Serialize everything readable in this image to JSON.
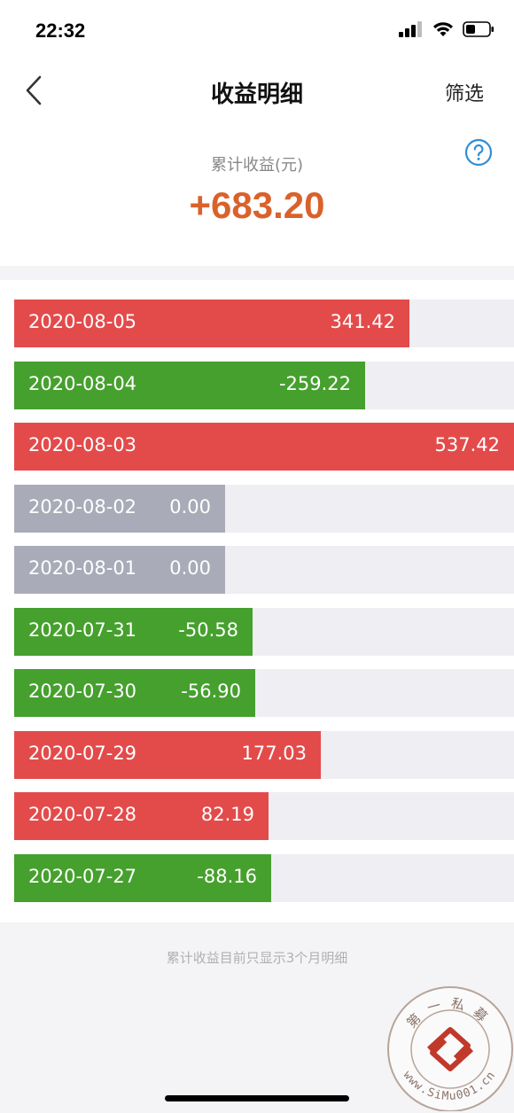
{
  "status_bar": {
    "time": "22:32"
  },
  "nav": {
    "title": "收益明细",
    "filter_label": "筛选"
  },
  "summary": {
    "label": "累计收益(元)",
    "value": "+683.20"
  },
  "colors": {
    "positive": "#e34b4b",
    "negative": "#46a02e",
    "zero": "#a9abb8",
    "accent": "#d9622b",
    "help": "#2e8fd6"
  },
  "records": [
    {
      "date": "2020-08-05",
      "value": "341.42",
      "kind": "positive",
      "bar_fraction": 0.79
    },
    {
      "date": "2020-08-04",
      "value": "-259.22",
      "kind": "negative",
      "bar_fraction": 0.702
    },
    {
      "date": "2020-08-03",
      "value": "537.42",
      "kind": "positive",
      "bar_fraction": 1.0
    },
    {
      "date": "2020-08-02",
      "value": "0.00",
      "kind": "zero",
      "bar_fraction": 0.422
    },
    {
      "date": "2020-08-01",
      "value": "0.00",
      "kind": "zero",
      "bar_fraction": 0.422
    },
    {
      "date": "2020-07-31",
      "value": "-50.58",
      "kind": "negative",
      "bar_fraction": 0.477
    },
    {
      "date": "2020-07-30",
      "value": "-56.90",
      "kind": "negative",
      "bar_fraction": 0.482
    },
    {
      "date": "2020-07-29",
      "value": "177.03",
      "kind": "positive",
      "bar_fraction": 0.613
    },
    {
      "date": "2020-07-28",
      "value": "82.19",
      "kind": "positive",
      "bar_fraction": 0.509
    },
    {
      "date": "2020-07-27",
      "value": "-88.16",
      "kind": "negative",
      "bar_fraction": 0.515
    }
  ],
  "footer_note": "累计收益目前只显示3个月明细",
  "watermark": {
    "text_top": "第一私募",
    "text_bottom": "www.SiMu001.cn"
  },
  "icons": {
    "back": "chevron-left-icon",
    "help": "question-circle-icon",
    "signal": "cellular-signal-icon",
    "wifi": "wifi-icon",
    "battery": "battery-icon"
  }
}
